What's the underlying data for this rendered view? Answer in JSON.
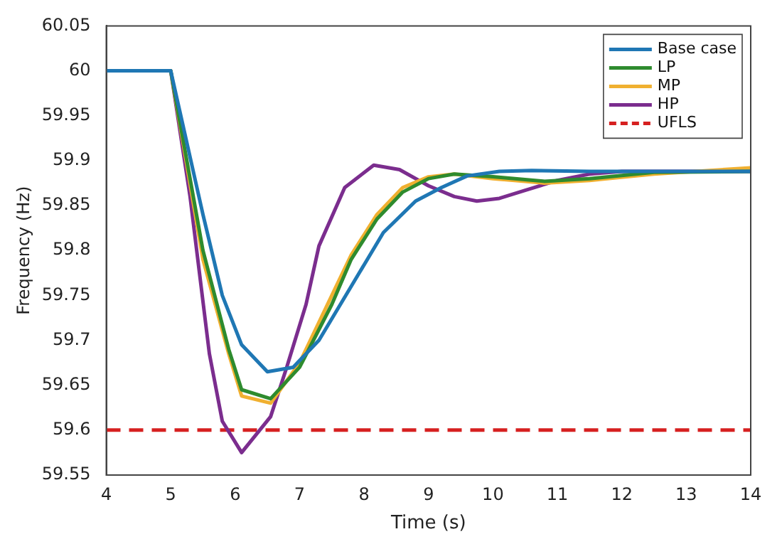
{
  "chart_data": {
    "type": "line",
    "xlabel": "Time (s)",
    "ylabel": "Frequency (Hz)",
    "xlim": [
      4,
      14
    ],
    "xticks": [
      4,
      5,
      6,
      7,
      8,
      9,
      10,
      11,
      12,
      13,
      14
    ],
    "ylim": [
      59.55,
      60.05
    ],
    "yticks": [
      59.55,
      59.6,
      59.65,
      59.7,
      59.75,
      59.8,
      59.85,
      59.9,
      59.95,
      60,
      60.05
    ],
    "grid": false,
    "legend": "top right",
    "series": [
      {
        "name": "Base case",
        "color": "#1f77b4",
        "x": [
          4,
          5,
          5.5,
          5.8,
          6.1,
          6.5,
          6.9,
          7.3,
          7.8,
          8.3,
          8.8,
          9.2,
          9.6,
          10.1,
          10.6,
          11.5,
          12,
          14
        ],
        "values": [
          60,
          60,
          59.84,
          59.75,
          59.695,
          59.665,
          59.67,
          59.7,
          59.76,
          59.82,
          59.855,
          59.87,
          59.883,
          59.888,
          59.889,
          59.888,
          59.888,
          59.888
        ]
      },
      {
        "name": "LP",
        "color": "#2e8b2e",
        "x": [
          4,
          5,
          5.5,
          5.9,
          6.1,
          6.55,
          7,
          7.5,
          7.8,
          8.2,
          8.6,
          9,
          9.4,
          10,
          10.8,
          11.5,
          12.5,
          14
        ],
        "values": [
          60,
          60,
          59.8,
          59.69,
          59.645,
          59.635,
          59.67,
          59.74,
          59.79,
          59.835,
          59.865,
          59.88,
          59.885,
          59.882,
          59.877,
          59.88,
          59.887,
          59.888
        ]
      },
      {
        "name": "MP",
        "color": "#f0b030",
        "x": [
          4,
          5,
          5.5,
          5.9,
          6.1,
          6.55,
          7,
          7.5,
          7.8,
          8.2,
          8.6,
          9,
          9.4,
          10,
          10.8,
          11.5,
          12.5,
          14
        ],
        "values": [
          60,
          60,
          59.79,
          59.685,
          59.638,
          59.63,
          59.675,
          59.75,
          59.795,
          59.84,
          59.87,
          59.882,
          59.885,
          59.88,
          59.875,
          59.878,
          59.885,
          59.892
        ]
      },
      {
        "name": "HP",
        "color": "#7b2d8e",
        "x": [
          4,
          5,
          5.3,
          5.6,
          5.8,
          6.1,
          6.55,
          6.8,
          7.1,
          7.3,
          7.7,
          8.15,
          8.55,
          9,
          9.4,
          9.75,
          10.1,
          10.5,
          11,
          11.5,
          12,
          13,
          14
        ],
        "values": [
          60,
          60,
          59.86,
          59.685,
          59.61,
          59.575,
          59.615,
          59.67,
          59.74,
          59.805,
          59.87,
          59.895,
          59.89,
          59.872,
          59.86,
          59.855,
          59.858,
          59.867,
          59.878,
          59.885,
          59.888,
          59.888,
          59.888
        ]
      },
      {
        "name": "UFLS",
        "color": "#d62020",
        "line_style": "dashed",
        "x": [
          4,
          14
        ],
        "values": [
          59.6,
          59.6
        ]
      }
    ]
  }
}
